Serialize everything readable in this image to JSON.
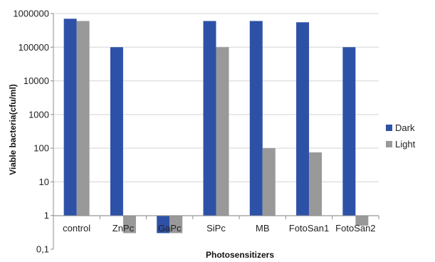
{
  "chart_data": {
    "type": "bar",
    "xlabel": "Photosensitizers",
    "ylabel": "Viable bacteria(cfu/ml)",
    "yscale": "log",
    "ylim": [
      0.1,
      1000000
    ],
    "yticks": [
      0.1,
      1,
      10,
      100,
      1000,
      10000,
      100000,
      1000000
    ],
    "ytick_labels": [
      "0,1",
      "1",
      "10",
      "100",
      "1000",
      "10000",
      "100000",
      "1000000"
    ],
    "grid": "horizontal",
    "legend_position": "right",
    "categories": [
      "control",
      "ZnPc",
      "GaPc",
      "SiPc",
      "MB",
      "FotoSan1",
      "FotoSan2"
    ],
    "series": [
      {
        "name": "Dark",
        "color": "#2e51a8",
        "values": [
          700000,
          100000,
          0.3,
          600000,
          600000,
          550000,
          100000
        ]
      },
      {
        "name": "Light",
        "color": "#999999",
        "values": [
          600000,
          0.3,
          0.3,
          100000,
          100,
          75,
          0.5
        ]
      }
    ]
  }
}
